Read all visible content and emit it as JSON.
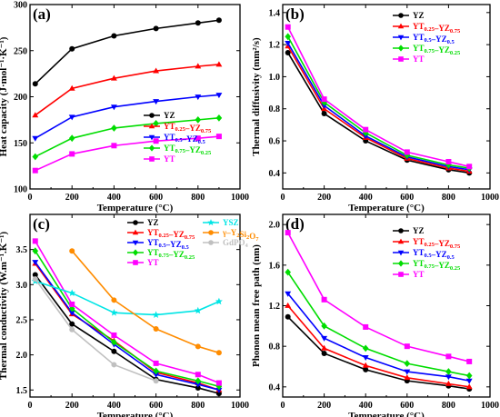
{
  "chart_data": [
    {
      "id": "a",
      "type": "line",
      "panel_label": "(a)",
      "xlabel": "Temperature (°C)",
      "ylabel": "Heat capacity (J·mol⁻¹·K⁻¹)",
      "xlim": [
        0,
        1000
      ],
      "ylim": [
        100,
        300
      ],
      "xticks": [
        0,
        200,
        400,
        600,
        800,
        1000
      ],
      "yticks": [
        100,
        150,
        200,
        250,
        300
      ],
      "legend_position": "bottom-right",
      "series": [
        {
          "name": "YZ",
          "name_html": "YZ",
          "color": "#000000",
          "marker": "circle",
          "x": [
            25,
            200,
            400,
            600,
            800,
            900
          ],
          "values": [
            214,
            252,
            266,
            274,
            280,
            283
          ]
        },
        {
          "name": "YT0.25-YZ0.75",
          "name_html": "YT<sub>0.25</sub>–YZ<sub>0.75</sub>",
          "color": "#ff0000",
          "marker": "triangle-up",
          "x": [
            25,
            200,
            400,
            600,
            800,
            900
          ],
          "values": [
            180,
            209,
            220,
            228,
            233,
            235
          ]
        },
        {
          "name": "YT0.5-YZ0.5",
          "name_html": "YT<sub>0.5</sub>–YZ<sub>0.5</sub>",
          "color": "#0000ff",
          "marker": "triangle-down",
          "x": [
            25,
            200,
            400,
            600,
            800,
            900
          ],
          "values": [
            155,
            178,
            189,
            195,
            200,
            202
          ]
        },
        {
          "name": "YT0.75-YZ0.25",
          "name_html": "YT<sub>0.75</sub>–YZ<sub>0.25</sub>",
          "color": "#00dd00",
          "marker": "diamond",
          "x": [
            25,
            200,
            400,
            600,
            800,
            900
          ],
          "values": [
            135,
            155,
            166,
            171,
            175,
            177
          ]
        },
        {
          "name": "YT",
          "name_html": "YT",
          "color": "#ff00ff",
          "marker": "square",
          "x": [
            25,
            200,
            400,
            600,
            800,
            900
          ],
          "values": [
            120,
            138,
            147,
            152,
            155,
            157
          ]
        }
      ]
    },
    {
      "id": "b",
      "type": "line",
      "panel_label": "(b)",
      "xlabel": "Temperature (°C)",
      "ylabel": "Thermal diffusivity (mm²/s)",
      "xlim": [
        0,
        1000
      ],
      "ylim": [
        0.3,
        1.45
      ],
      "xticks": [
        0,
        200,
        400,
        600,
        800,
        1000
      ],
      "yticks": [
        0.4,
        0.6,
        0.8,
        1.0,
        1.2,
        1.4
      ],
      "legend_position": "top-right",
      "series": [
        {
          "name": "YZ",
          "name_html": "YZ",
          "color": "#000000",
          "marker": "circle",
          "x": [
            25,
            200,
            400,
            600,
            800,
            900
          ],
          "values": [
            1.15,
            0.77,
            0.6,
            0.48,
            0.42,
            0.4
          ]
        },
        {
          "name": "YT0.25-YZ0.75",
          "name_html": "YT<sub>0.25</sub>–YZ<sub>0.75</sub>",
          "color": "#ff0000",
          "marker": "triangle-up",
          "x": [
            25,
            200,
            400,
            600,
            800,
            900
          ],
          "values": [
            1.19,
            0.8,
            0.62,
            0.49,
            0.43,
            0.41
          ]
        },
        {
          "name": "YT0.5-YZ0.5",
          "name_html": "YT<sub>0.5</sub>–YZ<sub>0.5</sub>",
          "color": "#0000ff",
          "marker": "triangle-down",
          "x": [
            25,
            200,
            400,
            600,
            800,
            900
          ],
          "values": [
            1.21,
            0.82,
            0.63,
            0.5,
            0.44,
            0.42
          ]
        },
        {
          "name": "YT0.75-YZ0.25",
          "name_html": "YT<sub>0.75</sub>–YZ<sub>0.25</sub>",
          "color": "#00dd00",
          "marker": "diamond",
          "x": [
            25,
            200,
            400,
            600,
            800,
            900
          ],
          "values": [
            1.25,
            0.84,
            0.65,
            0.51,
            0.45,
            0.43
          ]
        },
        {
          "name": "YT",
          "name_html": "YT",
          "color": "#ff00ff",
          "marker": "square",
          "x": [
            25,
            200,
            400,
            600,
            800,
            900
          ],
          "values": [
            1.31,
            0.86,
            0.67,
            0.53,
            0.47,
            0.44
          ]
        }
      ]
    },
    {
      "id": "c",
      "type": "line",
      "panel_label": "(c)",
      "xlabel": "Temperature (°C)",
      "ylabel": "Thermal conductivity (W.m⁻¹.K⁻¹)",
      "xlim": [
        0,
        1000
      ],
      "ylim": [
        1.4,
        4.0
      ],
      "xticks": [
        0,
        200,
        400,
        600,
        800,
        1000
      ],
      "yticks": [
        1.5,
        2.0,
        2.5,
        3.0,
        3.5
      ],
      "legend_position": "top-right",
      "series": [
        {
          "name": "YZ",
          "name_html": "YZ",
          "color": "#000000",
          "marker": "circle",
          "x": [
            25,
            200,
            400,
            600,
            800,
            900
          ],
          "values": [
            3.14,
            2.44,
            2.05,
            1.65,
            1.53,
            1.45
          ]
        },
        {
          "name": "YT0.25-YZ0.75",
          "name_html": "YT<sub>0.25</sub>–YZ<sub>0.75</sub>",
          "color": "#ff0000",
          "marker": "triangle-up",
          "x": [
            25,
            200,
            400,
            600,
            800,
            900
          ],
          "values": [
            3.3,
            2.58,
            2.2,
            1.75,
            1.6,
            1.5
          ]
        },
        {
          "name": "YT0.5-YZ0.5",
          "name_html": "YT<sub>0.5</sub>–YZ<sub>0.5</sub>",
          "color": "#0000ff",
          "marker": "triangle-down",
          "x": [
            25,
            200,
            400,
            600,
            800,
            900
          ],
          "values": [
            3.32,
            2.6,
            2.15,
            1.72,
            1.58,
            1.5
          ]
        },
        {
          "name": "YT0.75-YZ0.25",
          "name_html": "YT<sub>0.75</sub>–YZ<sub>0.25</sub>",
          "color": "#00dd00",
          "marker": "diamond",
          "x": [
            25,
            200,
            400,
            600,
            800,
            900
          ],
          "values": [
            3.48,
            2.66,
            2.18,
            1.77,
            1.63,
            1.55
          ]
        },
        {
          "name": "YT",
          "name_html": "YT",
          "color": "#ff00ff",
          "marker": "square",
          "x": [
            25,
            200,
            400,
            600,
            800,
            900
          ],
          "values": [
            3.62,
            2.72,
            2.28,
            1.88,
            1.72,
            1.6
          ]
        },
        {
          "name": "YSZ",
          "name_html": "YSZ",
          "color": "#00e5e5",
          "marker": "star",
          "x": [
            25,
            200,
            400,
            600,
            800,
            900
          ],
          "values": [
            3.05,
            2.88,
            2.6,
            2.57,
            2.63,
            2.76
          ]
        },
        {
          "name": "γ-Y2Si2O7",
          "name_html": "γ–Y<sub>2</sub>Si<sub>2</sub>O<sub>7</sub>",
          "color": "#ff8c00",
          "marker": "circle",
          "x": [
            200,
            400,
            600,
            800,
            900
          ],
          "values": [
            3.48,
            2.78,
            2.37,
            2.12,
            2.03
          ]
        },
        {
          "name": "GdPO4",
          "name_html": "GdPO<sub>4</sub>",
          "color": "#c0c0c0",
          "marker": "circle",
          "x": [
            25,
            200,
            400,
            600
          ],
          "values": [
            3.08,
            2.36,
            1.86,
            1.63
          ]
        }
      ]
    },
    {
      "id": "d",
      "type": "line",
      "panel_label": "(d)",
      "xlabel": "Temperature (°C)",
      "ylabel": "Phonon mean free path (nm)",
      "xlim": [
        0,
        1000
      ],
      "ylim": [
        0.3,
        2.1
      ],
      "xticks": [
        0,
        200,
        400,
        600,
        800,
        1000
      ],
      "yticks": [
        0.4,
        0.8,
        1.2,
        1.6,
        2.0
      ],
      "legend_position": "top-right",
      "series": [
        {
          "name": "YZ",
          "name_html": "YZ",
          "color": "#000000",
          "marker": "circle",
          "x": [
            25,
            200,
            400,
            600,
            800,
            900
          ],
          "values": [
            1.09,
            0.73,
            0.57,
            0.46,
            0.41,
            0.38
          ]
        },
        {
          "name": "YT0.25-YZ0.75",
          "name_html": "YT<sub>0.25</sub>–YZ<sub>0.75</sub>",
          "color": "#ff0000",
          "marker": "triangle-up",
          "x": [
            25,
            200,
            400,
            600,
            800,
            900
          ],
          "values": [
            1.2,
            0.78,
            0.61,
            0.49,
            0.43,
            0.4
          ]
        },
        {
          "name": "YT0.5-YZ0.5",
          "name_html": "YT<sub>0.5</sub>–YZ<sub>0.5</sub>",
          "color": "#0000ff",
          "marker": "triangle-down",
          "x": [
            25,
            200,
            400,
            600,
            800,
            900
          ],
          "values": [
            1.32,
            0.88,
            0.69,
            0.55,
            0.5,
            0.46
          ]
        },
        {
          "name": "YT0.75-YZ0.25",
          "name_html": "YT<sub>0.75</sub>–YZ<sub>0.25</sub>",
          "color": "#00dd00",
          "marker": "diamond",
          "x": [
            25,
            200,
            400,
            600,
            800,
            900
          ],
          "values": [
            1.53,
            1.0,
            0.78,
            0.63,
            0.55,
            0.51
          ]
        },
        {
          "name": "YT",
          "name_html": "YT",
          "color": "#ff00ff",
          "marker": "square",
          "x": [
            25,
            200,
            400,
            600,
            800,
            900
          ],
          "values": [
            1.92,
            1.26,
            0.99,
            0.8,
            0.7,
            0.65
          ]
        }
      ]
    }
  ]
}
